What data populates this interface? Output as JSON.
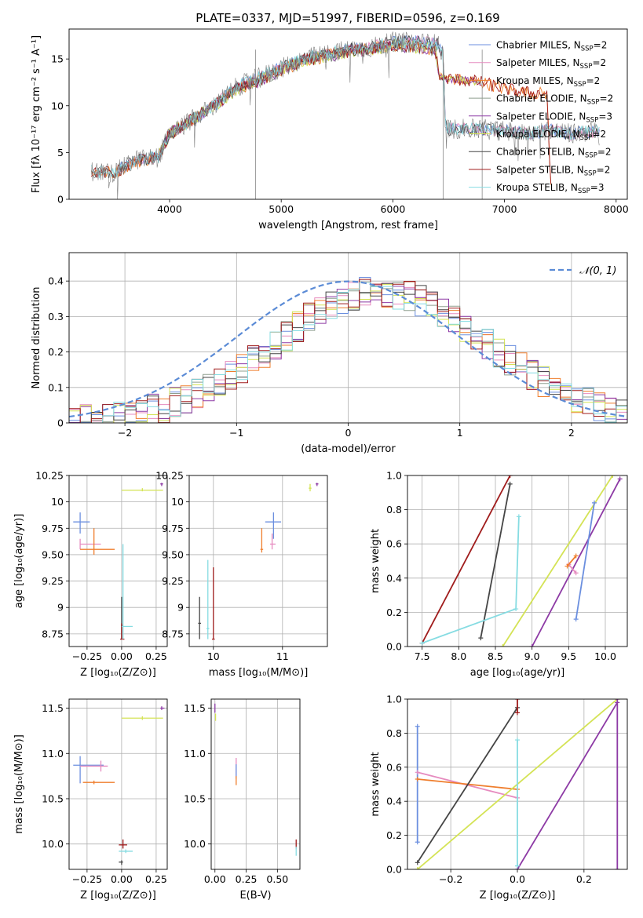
{
  "figure_title": "PLATE=0337, MJD=51997, FIBERID=0596, z=0.169",
  "legend_ssp_prefix": "N",
  "legend_ssp_sub": "SSP",
  "colors": {
    "Chabrier MILES": "#6b8fdf",
    "Salpeter MILES": "#e68bbf",
    "Kroupa MILES": "#ef7e2d",
    "Chabrier ELODIE": "#8f9f8f",
    "Salpeter ELODIE": "#8d3aa5",
    "Kroupa ELODIE": "#d4e355",
    "Chabrier STELIB": "#454545",
    "Salpeter STELIB": "#a01c1c",
    "Kroupa STELIB": "#86dce2",
    "data": "#808080",
    "normal": "#5b8bd6"
  },
  "chart_data": [
    {
      "type": "line",
      "id": "spectrum",
      "xlabel": "wavelength [Angstrom, rest frame]",
      "ylabel": "Flux [fλ 10⁻¹⁷ erg cm⁻² s⁻¹ A⁻¹]",
      "xlim": [
        3100,
        8100
      ],
      "ylim": [
        0,
        18.2
      ],
      "xticks": [
        4000,
        5000,
        6000,
        7000,
        8000
      ],
      "yticks": [
        0,
        5,
        10,
        15
      ],
      "grid": false,
      "legend_position": "top-right",
      "series": [
        {
          "name": "Chabrier MILES",
          "nssp": "2"
        },
        {
          "name": "Salpeter MILES",
          "nssp": "2"
        },
        {
          "name": "Kroupa MILES",
          "nssp": "2"
        },
        {
          "name": "Chabrier ELODIE",
          "nssp": "2"
        },
        {
          "name": "Salpeter ELODIE",
          "nssp": "3"
        },
        {
          "name": "Kroupa ELODIE",
          "nssp": "2"
        },
        {
          "name": "Chabrier STELIB",
          "nssp": "2"
        },
        {
          "name": "Salpeter STELIB",
          "nssp": "2"
        },
        {
          "name": "Kroupa STELIB",
          "nssp": "3"
        }
      ],
      "data_envelope": [
        [
          3300,
          3.0
        ],
        [
          3500,
          2.8
        ],
        [
          3700,
          4.2
        ],
        [
          3900,
          4.5
        ],
        [
          4000,
          7.0
        ],
        [
          4200,
          8.5
        ],
        [
          4400,
          10.0
        ],
        [
          4600,
          12.0
        ],
        [
          4800,
          13.0
        ],
        [
          5000,
          14.0
        ],
        [
          5200,
          15.0
        ],
        [
          5400,
          15.5
        ],
        [
          5600,
          16.0
        ],
        [
          5800,
          16.2
        ],
        [
          6000,
          16.8
        ],
        [
          6200,
          16.8
        ],
        [
          6400,
          16.6
        ],
        [
          6450,
          15.5
        ],
        [
          6470,
          8.0
        ],
        [
          6500,
          7.5
        ],
        [
          6800,
          7.5
        ],
        [
          7000,
          7.3
        ],
        [
          7200,
          7.0
        ],
        [
          7400,
          7.4
        ],
        [
          7600,
          7.0
        ],
        [
          7800,
          7.3
        ]
      ],
      "model_envelope": [
        [
          3300,
          3.0
        ],
        [
          3500,
          2.8
        ],
        [
          3700,
          4.0
        ],
        [
          3900,
          4.5
        ],
        [
          4000,
          7.0
        ],
        [
          4200,
          8.5
        ],
        [
          4400,
          10.0
        ],
        [
          4600,
          11.8
        ],
        [
          4800,
          12.6
        ],
        [
          5000,
          13.8
        ],
        [
          5200,
          14.8
        ],
        [
          5400,
          15.3
        ],
        [
          5600,
          15.8
        ],
        [
          5800,
          16.0
        ],
        [
          6000,
          16.5
        ],
        [
          6200,
          16.3
        ],
        [
          6380,
          16.0
        ],
        [
          6420,
          13.0
        ],
        [
          6800,
          12.5
        ],
        [
          7000,
          11.8
        ],
        [
          7200,
          11.4
        ],
        [
          7380,
          11.3
        ],
        [
          7420,
          0.0
        ]
      ]
    },
    {
      "type": "histogram",
      "id": "residuals",
      "xlabel": "(data-model)/error",
      "ylabel": "Normed distribution",
      "xlim": [
        -2.5,
        2.5
      ],
      "ylim": [
        0,
        0.48
      ],
      "xticks": [
        -2,
        -1,
        0,
        1,
        2
      ],
      "yticks": [
        0.0,
        0.1,
        0.2,
        0.3,
        0.4
      ],
      "grid": true,
      "legend": "𝒩(0, 1)",
      "legend_position": "top-right"
    },
    {
      "type": "scatter",
      "id": "age_vs_Z",
      "xlabel": "Z [log₁₀(Z/Z⊙)]",
      "ylabel": "age  [log₁₀(age/yr)]",
      "xlim": [
        -0.38,
        0.33
      ],
      "ylim": [
        8.63,
        10.25
      ],
      "xticks": [
        -0.25,
        0.0,
        0.25
      ],
      "yticks": [
        8.75,
        9.0,
        9.25,
        9.5,
        9.75,
        10.0,
        10.25
      ],
      "grid": true,
      "points": [
        {
          "series": "Chabrier MILES",
          "x": -0.3,
          "y": 9.81,
          "xmin": -0.35,
          "xmax": -0.23,
          "ymin": 9.7,
          "ymax": 9.9
        },
        {
          "series": "Salpeter MILES",
          "x": -0.3,
          "y": 9.6,
          "xmin": -0.3,
          "xmax": -0.15,
          "ymin": 9.55,
          "ymax": 9.65
        },
        {
          "series": "Kroupa MILES",
          "x": -0.2,
          "y": 9.55,
          "xmin": -0.3,
          "xmax": -0.05,
          "ymin": 9.5,
          "ymax": 9.75
        },
        {
          "series": "Kroupa ELODIE",
          "x": 0.15,
          "y": 10.11,
          "xmin": 0.0,
          "xmax": 0.3,
          "ymin": 10.1,
          "ymax": 10.13
        },
        {
          "series": "Salpeter ELODIE",
          "x": 0.29,
          "y": 10.17,
          "xmin": 0.28,
          "xmax": 0.3,
          "ymin": 10.15,
          "ymax": 10.18
        },
        {
          "series": "Chabrier STELIB",
          "x": 0.0,
          "y": 8.83,
          "xmin": 0.0,
          "xmax": 0.01,
          "ymin": 8.7,
          "ymax": 9.1
        },
        {
          "series": "Salpeter STELIB",
          "x": 0.0,
          "y": 8.7,
          "xmin": -0.01,
          "xmax": 0.02,
          "ymin": 8.7,
          "ymax": 8.85
        },
        {
          "series": "Kroupa STELIB",
          "x": 0.01,
          "y": 8.82,
          "xmin": 0.0,
          "xmax": 0.08,
          "ymin": 8.7,
          "ymax": 9.6
        }
      ]
    },
    {
      "type": "scatter",
      "id": "age_vs_mass",
      "xlabel": "mass [log₁₀(M/M⊙)]",
      "ylabel": "",
      "xlim": [
        9.65,
        11.65
      ],
      "ylim": [
        8.63,
        10.25
      ],
      "xticks": [
        10,
        11
      ],
      "yticks": [
        8.75,
        9.0,
        9.25,
        9.5,
        9.75,
        10.0,
        10.25
      ],
      "grid": true,
      "points": [
        {
          "series": "Chabrier MILES",
          "x": 10.87,
          "y": 9.81,
          "xmin": 10.75,
          "xmax": 10.98,
          "ymin": 9.65,
          "ymax": 9.9
        },
        {
          "series": "Salpeter MILES",
          "x": 10.85,
          "y": 9.6,
          "xmin": 10.82,
          "xmax": 10.9,
          "ymin": 9.55,
          "ymax": 9.7
        },
        {
          "series": "Kroupa MILES",
          "x": 10.7,
          "y": 9.55,
          "xmin": 10.68,
          "xmax": 10.72,
          "ymin": 9.52,
          "ymax": 9.75
        },
        {
          "series": "Kroupa ELODIE",
          "x": 11.4,
          "y": 10.13,
          "xmin": 11.38,
          "xmax": 11.42,
          "ymin": 10.1,
          "ymax": 10.17
        },
        {
          "series": "Salpeter ELODIE",
          "x": 11.5,
          "y": 10.17,
          "xmin": 11.48,
          "xmax": 11.52,
          "ymin": 10.15,
          "ymax": 10.18
        },
        {
          "series": "Chabrier STELIB",
          "x": 9.8,
          "y": 8.85,
          "xmin": 9.78,
          "xmax": 9.82,
          "ymin": 8.7,
          "ymax": 9.1
        },
        {
          "series": "Salpeter STELIB",
          "x": 10.0,
          "y": 8.7,
          "xmin": 9.98,
          "xmax": 10.02,
          "ymin": 8.7,
          "ymax": 9.38
        },
        {
          "series": "Kroupa STELIB",
          "x": 9.92,
          "y": 8.8,
          "xmin": 9.9,
          "xmax": 9.94,
          "ymin": 8.7,
          "ymax": 9.45
        }
      ]
    },
    {
      "type": "line",
      "id": "weight_vs_age",
      "xlabel": "age  [log₁₀(age/yr)]",
      "ylabel": "mass weight",
      "xlim": [
        7.3,
        10.3
      ],
      "ylim": [
        0,
        1.0
      ],
      "xticks": [
        7.5,
        8.0,
        8.5,
        9.0,
        9.5,
        10.0
      ],
      "yticks": [
        0.0,
        0.2,
        0.4,
        0.6,
        0.8,
        1.0
      ],
      "grid": true,
      "series": [
        {
          "name": "Salpeter STELIB",
          "x": [
            7.5,
            8.7
          ],
          "y": [
            0.02,
            1.0
          ]
        },
        {
          "name": "Chabrier STELIB",
          "x": [
            8.3,
            8.7
          ],
          "y": [
            0.05,
            0.95
          ]
        },
        {
          "name": "Kroupa STELIB",
          "x": [
            7.5,
            8.78,
            8.82
          ],
          "y": [
            0.02,
            0.22,
            0.76
          ]
        },
        {
          "name": "Kroupa ELODIE",
          "x": [
            8.6,
            10.1
          ],
          "y": [
            0.0,
            1.0
          ]
        },
        {
          "name": "Salpeter ELODIE",
          "x": [
            9.0,
            10.2
          ],
          "y": [
            0.0,
            0.98
          ]
        },
        {
          "name": "Chabrier MILES",
          "x": [
            9.6,
            9.85
          ],
          "y": [
            0.16,
            0.84
          ]
        },
        {
          "name": "Salpeter MILES",
          "x": [
            9.5,
            9.6
          ],
          "y": [
            0.48,
            0.43
          ]
        },
        {
          "name": "Kroupa MILES",
          "x": [
            9.48,
            9.6
          ],
          "y": [
            0.47,
            0.53
          ]
        }
      ]
    },
    {
      "type": "scatter",
      "id": "mass_vs_Z",
      "xlabel": "Z [log₁₀(Z/Z⊙)]",
      "ylabel": "mass [log₁₀(M/M⊙)]",
      "xlim": [
        -0.38,
        0.33
      ],
      "ylim": [
        9.72,
        11.6
      ],
      "xticks": [
        -0.25,
        0.0,
        0.25
      ],
      "yticks": [
        10.0,
        10.5,
        11.0,
        11.5
      ],
      "grid": true,
      "points": [
        {
          "series": "Chabrier MILES",
          "x": -0.3,
          "y": 10.87,
          "xmin": -0.35,
          "xmax": -0.13,
          "ymin": 10.67,
          "ymax": 10.97
        },
        {
          "series": "Salpeter MILES",
          "x": -0.15,
          "y": 10.86,
          "xmin": -0.3,
          "xmax": -0.1,
          "ymin": 10.8,
          "ymax": 10.92
        },
        {
          "series": "Kroupa MILES",
          "x": -0.2,
          "y": 10.68,
          "xmin": -0.28,
          "xmax": -0.05,
          "ymin": 10.66,
          "ymax": 10.7
        },
        {
          "series": "Kroupa ELODIE",
          "x": 0.15,
          "y": 11.39,
          "xmin": 0.0,
          "xmax": 0.3,
          "ymin": 11.37,
          "ymax": 11.41
        },
        {
          "series": "Salpeter ELODIE",
          "x": 0.29,
          "y": 11.5,
          "xmin": 0.28,
          "xmax": 0.31,
          "ymin": 11.48,
          "ymax": 11.52
        },
        {
          "series": "Chabrier STELIB",
          "x": 0.0,
          "y": 9.8,
          "xmin": -0.02,
          "xmax": 0.01,
          "ymin": 9.77,
          "ymax": 9.82
        },
        {
          "series": "Salpeter STELIB",
          "x": 0.01,
          "y": 9.99,
          "xmin": -0.02,
          "xmax": 0.04,
          "ymin": 9.95,
          "ymax": 10.05
        },
        {
          "series": "Kroupa STELIB",
          "x": 0.03,
          "y": 9.92,
          "xmin": -0.02,
          "xmax": 0.08,
          "ymin": 9.9,
          "ymax": 9.94
        }
      ]
    },
    {
      "type": "scatter",
      "id": "mass_vs_EBV",
      "xlabel": "E(B-V)",
      "ylabel": "",
      "xlim": [
        -0.03,
        0.68
      ],
      "ylim": [
        9.72,
        11.6
      ],
      "xticks": [
        0.0,
        0.25,
        0.5
      ],
      "yticks": [
        10.0,
        10.5,
        11.0,
        11.5
      ],
      "grid": true,
      "points": [
        {
          "series": "Salpeter ELODIE",
          "x": 0.0,
          "y": 11.5,
          "xmin": 0.0,
          "xmax": 0.0,
          "ymin": 11.45,
          "ymax": 11.55
        },
        {
          "series": "Kroupa ELODIE",
          "x": 0.005,
          "y": 11.4,
          "xmin": 0.005,
          "xmax": 0.005,
          "ymin": 11.36,
          "ymax": 11.44
        },
        {
          "series": "Salpeter MILES",
          "x": 0.17,
          "y": 10.85,
          "xmin": 0.17,
          "xmax": 0.17,
          "ymin": 10.75,
          "ymax": 10.95
        },
        {
          "series": "Chabrier MILES",
          "x": 0.17,
          "y": 10.8,
          "xmin": 0.17,
          "xmax": 0.17,
          "ymin": 10.72,
          "ymax": 10.88
        },
        {
          "series": "Kroupa MILES",
          "x": 0.17,
          "y": 10.7,
          "xmin": 0.17,
          "xmax": 0.17,
          "ymin": 10.65,
          "ymax": 10.75
        },
        {
          "series": "Salpeter STELIB",
          "x": 0.65,
          "y": 10.0,
          "xmin": 0.65,
          "xmax": 0.65,
          "ymin": 9.95,
          "ymax": 10.05
        },
        {
          "series": "Kroupa STELIB",
          "x": 0.65,
          "y": 9.92,
          "xmin": 0.65,
          "xmax": 0.65,
          "ymin": 9.87,
          "ymax": 9.97
        }
      ]
    },
    {
      "type": "line",
      "id": "weight_vs_Z",
      "xlabel": "Z [log₁₀(Z/Z⊙)]",
      "ylabel": "mass weight",
      "xlim": [
        -0.33,
        0.33
      ],
      "ylim": [
        0,
        1.0
      ],
      "xticks": [
        -0.2,
        0.0,
        0.2
      ],
      "yticks": [
        0.0,
        0.2,
        0.4,
        0.6,
        0.8,
        1.0
      ],
      "grid": true,
      "series": [
        {
          "name": "Chabrier MILES",
          "x": [
            -0.3,
            -0.3
          ],
          "y": [
            0.16,
            0.84
          ]
        },
        {
          "name": "Salpeter MILES",
          "x": [
            -0.3,
            0.0
          ],
          "y": [
            0.57,
            0.42
          ]
        },
        {
          "name": "Kroupa MILES",
          "x": [
            -0.3,
            0.0
          ],
          "y": [
            0.53,
            0.47
          ]
        },
        {
          "name": "Chabrier STELIB",
          "x": [
            -0.3,
            0.0
          ],
          "y": [
            0.04,
            0.95
          ]
        },
        {
          "name": "Kroupa ELODIE",
          "x": [
            -0.3,
            0.3
          ],
          "y": [
            0.0,
            1.0
          ]
        },
        {
          "name": "Salpeter ELODIE",
          "x": [
            0.0,
            0.3
          ],
          "y": [
            0.0,
            0.98
          ]
        },
        {
          "name": "Salpeter STELIB",
          "x": [
            0.0,
            0.0
          ],
          "y": [
            0.92,
            1.0
          ]
        },
        {
          "name": "Kroupa STELIB",
          "x": [
            0.0,
            0.0
          ],
          "y": [
            0.02,
            0.76
          ]
        },
        {
          "name": "Salpeter ELODIE",
          "x": [
            0.3,
            0.3
          ],
          "y": [
            0.0,
            1.0
          ]
        }
      ]
    }
  ]
}
